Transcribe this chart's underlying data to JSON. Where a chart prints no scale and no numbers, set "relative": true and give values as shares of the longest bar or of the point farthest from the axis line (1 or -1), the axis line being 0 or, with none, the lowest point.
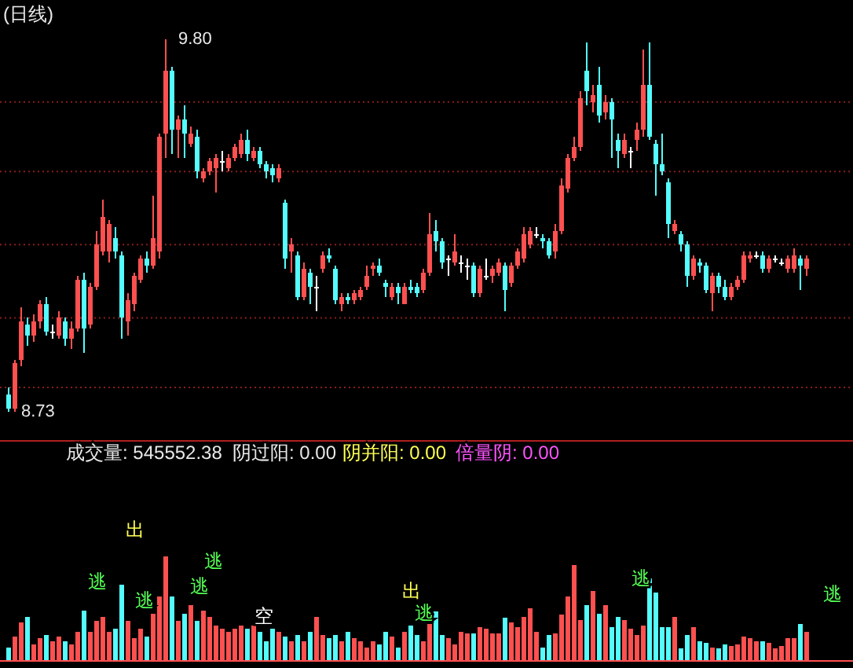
{
  "chart_data": [
    {
      "type": "candlestick",
      "title": "(日线)",
      "tick_labels": false,
      "grid": "y",
      "categories": [
        null,
        null,
        null,
        null,
        null,
        null,
        null,
        null,
        null,
        null,
        null,
        null,
        null,
        null,
        null,
        null,
        null,
        null,
        null,
        null,
        null,
        null,
        null,
        null,
        null,
        null,
        null,
        null,
        null,
        null,
        null,
        null,
        null,
        null,
        null,
        null,
        null,
        null,
        null,
        null,
        null,
        null,
        null,
        null,
        null,
        null,
        null,
        null,
        null,
        null,
        null,
        null,
        null,
        null,
        null,
        null,
        null,
        null,
        null,
        null,
        null,
        null,
        null,
        null,
        null,
        null,
        null,
        null,
        null,
        null,
        null,
        null,
        null,
        null,
        null,
        null,
        null,
        null,
        null,
        null,
        null,
        null,
        null,
        null,
        null,
        null,
        null,
        null,
        null,
        null,
        null,
        null,
        null,
        null,
        null,
        null,
        null,
        null,
        null,
        null,
        null,
        null,
        null,
        null,
        null,
        null,
        null,
        null,
        null,
        null,
        null,
        null,
        null,
        null,
        null,
        null,
        null,
        null,
        null,
        null,
        null,
        null,
        null,
        null,
        null,
        null,
        null,
        null
      ],
      "yticks": [
        {
          "value": 8.8,
          "label": null
        },
        {
          "value": 9.0,
          "label": null
        },
        {
          "value": 9.21,
          "label": null
        },
        {
          "value": 9.42,
          "label": null
        },
        {
          "value": 9.62,
          "label": null
        }
      ],
      "annotations": [
        "9.80",
        "8.73"
      ],
      "ohlc": [
        [
          8.78,
          8.8,
          8.73,
          8.74
        ],
        [
          8.74,
          8.88,
          8.73,
          8.87
        ],
        [
          8.88,
          9.03,
          8.86,
          8.99
        ],
        [
          8.98,
          9.0,
          8.92,
          8.95
        ],
        [
          8.95,
          9.01,
          8.93,
          8.99
        ],
        [
          8.99,
          9.05,
          8.97,
          9.04
        ],
        [
          9.04,
          9.06,
          8.95,
          8.96
        ],
        [
          8.96,
          8.98,
          8.94,
          8.96
        ],
        [
          8.95,
          9.02,
          8.94,
          9.0
        ],
        [
          8.99,
          9.0,
          8.92,
          8.94
        ],
        [
          8.94,
          8.99,
          8.91,
          8.97
        ],
        [
          8.97,
          9.12,
          8.96,
          9.11
        ],
        [
          9.11,
          9.13,
          8.9,
          8.97
        ],
        [
          8.98,
          9.1,
          8.97,
          9.09
        ],
        [
          9.09,
          9.25,
          9.08,
          9.21
        ],
        [
          9.19,
          9.34,
          9.18,
          9.29
        ],
        [
          9.19,
          9.28,
          9.16,
          9.27
        ],
        [
          9.23,
          9.26,
          9.17,
          9.19
        ],
        [
          9.18,
          9.19,
          8.94,
          9.0
        ],
        [
          8.99,
          9.07,
          8.95,
          9.05
        ],
        [
          9.04,
          9.13,
          9.02,
          9.12
        ],
        [
          9.11,
          9.18,
          9.1,
          9.17
        ],
        [
          9.17,
          9.19,
          9.13,
          9.15
        ],
        [
          9.15,
          9.35,
          9.14,
          9.23
        ],
        [
          9.19,
          9.53,
          9.17,
          9.52
        ],
        [
          9.53,
          9.8,
          9.46,
          9.71
        ],
        [
          9.71,
          9.72,
          9.47,
          9.54
        ],
        [
          9.54,
          9.58,
          9.46,
          9.57
        ],
        [
          9.57,
          9.61,
          9.46,
          9.53
        ],
        [
          9.5,
          9.55,
          9.49,
          9.53
        ],
        [
          9.52,
          9.54,
          9.4,
          9.42
        ],
        [
          9.4,
          9.43,
          9.39,
          9.42
        ],
        [
          9.42,
          9.46,
          9.41,
          9.45
        ],
        [
          9.43,
          9.47,
          9.36,
          9.46
        ],
        [
          9.45,
          9.48,
          9.42,
          9.45
        ],
        [
          9.43,
          9.47,
          9.42,
          9.46
        ],
        [
          9.46,
          9.5,
          9.45,
          9.49
        ],
        [
          9.47,
          9.53,
          9.46,
          9.51
        ],
        [
          9.51,
          9.54,
          9.45,
          9.47
        ],
        [
          9.46,
          9.49,
          9.45,
          9.48
        ],
        [
          9.48,
          9.49,
          9.43,
          9.44
        ],
        [
          9.44,
          9.45,
          9.4,
          9.42
        ],
        [
          9.43,
          9.44,
          9.39,
          9.41
        ],
        [
          9.4,
          9.44,
          9.39,
          9.43
        ],
        [
          9.33,
          9.34,
          9.14,
          9.17
        ],
        [
          9.19,
          9.23,
          9.13,
          9.21
        ],
        [
          9.18,
          9.19,
          9.05,
          9.06
        ],
        [
          9.06,
          9.16,
          9.05,
          9.14
        ],
        [
          9.13,
          9.14,
          9.04,
          9.09
        ],
        [
          9.09,
          9.12,
          9.02,
          9.09
        ],
        [
          9.14,
          9.19,
          9.13,
          9.18
        ],
        [
          9.18,
          9.2,
          9.16,
          9.17
        ],
        [
          9.14,
          9.15,
          9.04,
          9.05
        ],
        [
          9.04,
          9.07,
          9.02,
          9.06
        ],
        [
          9.06,
          9.07,
          9.04,
          9.05
        ],
        [
          9.05,
          9.08,
          9.04,
          9.07
        ],
        [
          9.06,
          9.09,
          9.05,
          9.08
        ],
        [
          9.09,
          9.15,
          9.08,
          9.12
        ],
        [
          9.14,
          9.16,
          9.12,
          9.15
        ],
        [
          9.15,
          9.17,
          9.12,
          9.13
        ],
        [
          9.1,
          9.11,
          9.06,
          9.09
        ],
        [
          9.06,
          9.1,
          9.05,
          9.09
        ],
        [
          9.09,
          9.1,
          9.04,
          9.07
        ],
        [
          9.04,
          9.1,
          9.04,
          9.09
        ],
        [
          9.09,
          9.11,
          9.07,
          9.08
        ],
        [
          9.09,
          9.1,
          9.06,
          9.07
        ],
        [
          9.08,
          9.14,
          9.07,
          9.13
        ],
        [
          9.13,
          9.3,
          9.12,
          9.24
        ],
        [
          9.25,
          9.28,
          9.19,
          9.22
        ],
        [
          9.22,
          9.23,
          9.14,
          9.16
        ],
        [
          9.17,
          9.18,
          9.12,
          9.17
        ],
        [
          9.16,
          9.24,
          9.15,
          9.19
        ],
        [
          9.16,
          9.18,
          9.13,
          9.16
        ],
        [
          9.15,
          9.17,
          9.11,
          9.15
        ],
        [
          9.15,
          9.16,
          9.06,
          9.07
        ],
        [
          9.07,
          9.15,
          9.06,
          9.14
        ],
        [
          9.12,
          9.17,
          9.11,
          9.12
        ],
        [
          9.12,
          9.15,
          9.1,
          9.14
        ],
        [
          9.13,
          9.17,
          9.12,
          9.16
        ],
        [
          9.15,
          9.16,
          9.02,
          9.08
        ],
        [
          9.1,
          9.16,
          9.09,
          9.15
        ],
        [
          9.15,
          9.2,
          9.14,
          9.19
        ],
        [
          9.17,
          9.26,
          9.16,
          9.24
        ],
        [
          9.21,
          9.26,
          9.2,
          9.25
        ],
        [
          9.24,
          9.26,
          9.23,
          9.24
        ],
        [
          9.23,
          9.24,
          9.2,
          9.22
        ],
        [
          9.22,
          9.23,
          9.17,
          9.18
        ],
        [
          9.19,
          9.27,
          9.17,
          9.25
        ],
        [
          9.25,
          9.4,
          9.24,
          9.38
        ],
        [
          9.37,
          9.47,
          9.36,
          9.46
        ],
        [
          9.46,
          9.52,
          9.45,
          9.49
        ],
        [
          9.49,
          9.65,
          9.48,
          9.63
        ],
        [
          9.71,
          9.79,
          9.61,
          9.65
        ],
        [
          9.62,
          9.67,
          9.59,
          9.64
        ],
        [
          9.67,
          9.72,
          9.56,
          9.58
        ],
        [
          9.59,
          9.64,
          9.57,
          9.62
        ],
        [
          9.62,
          9.63,
          9.46,
          9.57
        ],
        [
          9.51,
          9.53,
          9.43,
          9.48
        ],
        [
          9.47,
          9.53,
          9.46,
          9.51
        ],
        [
          9.48,
          9.49,
          9.43,
          9.48
        ],
        [
          9.51,
          9.56,
          9.48,
          9.54
        ],
        [
          9.54,
          9.77,
          9.52,
          9.67
        ],
        [
          9.67,
          9.79,
          9.51,
          9.52
        ],
        [
          9.5,
          9.51,
          9.35,
          9.44
        ],
        [
          9.44,
          9.53,
          9.41,
          9.42
        ],
        [
          9.39,
          9.4,
          9.23,
          9.27
        ],
        [
          9.25,
          9.28,
          9.24,
          9.27
        ],
        [
          9.24,
          9.25,
          9.19,
          9.21
        ],
        [
          9.21,
          9.22,
          9.09,
          9.12
        ],
        [
          9.12,
          9.18,
          9.11,
          9.17
        ],
        [
          9.16,
          9.17,
          9.13,
          9.15
        ],
        [
          9.15,
          9.16,
          9.07,
          9.08
        ],
        [
          9.07,
          9.13,
          9.02,
          9.12
        ],
        [
          9.12,
          9.13,
          9.07,
          9.09
        ],
        [
          9.09,
          9.11,
          9.05,
          9.06
        ],
        [
          9.06,
          9.1,
          9.05,
          9.09
        ],
        [
          9.09,
          9.12,
          9.08,
          9.11
        ],
        [
          9.11,
          9.19,
          9.1,
          9.18
        ],
        [
          9.17,
          9.19,
          9.16,
          9.18
        ],
        [
          9.18,
          9.19,
          9.17,
          9.18
        ],
        [
          9.18,
          9.19,
          9.13,
          9.14
        ],
        [
          9.14,
          9.18,
          9.13,
          9.17
        ],
        [
          9.17,
          9.18,
          9.16,
          9.17
        ],
        [
          9.16,
          9.17,
          9.15,
          9.16
        ],
        [
          9.14,
          9.18,
          9.13,
          9.17
        ],
        [
          9.14,
          9.2,
          9.13,
          9.18
        ],
        [
          9.17,
          9.18,
          9.08,
          9.15
        ],
        [
          9.14,
          9.18,
          9.12,
          9.17
        ]
      ],
      "colors": [
        "#54fcfc",
        "#ff5050",
        "#ff5050",
        "#54fcfc",
        "#ff5050",
        "#ff5050",
        "#54fcfc",
        "#ffffff",
        "#ff5050",
        "#54fcfc",
        "#ff5050",
        "#ff5050",
        "#54fcfc",
        "#ff5050",
        "#ff5050",
        "#ff5050",
        "#ff5050",
        "#54fcfc",
        "#54fcfc",
        "#ff5050",
        "#ff5050",
        "#ff5050",
        "#54fcfc",
        "#ff5050",
        "#ff5050",
        "#ff5050",
        "#54fcfc",
        "#ff5050",
        "#54fcfc",
        "#ff5050",
        "#54fcfc",
        "#ff5050",
        "#ff5050",
        "#ff5050",
        "#ffffff",
        "#ff5050",
        "#ff5050",
        "#ff5050",
        "#54fcfc",
        "#ff5050",
        "#54fcfc",
        "#54fcfc",
        "#54fcfc",
        "#ff5050",
        "#54fcfc",
        "#ff5050",
        "#54fcfc",
        "#ff5050",
        "#54fcfc",
        "#ffffff",
        "#ff5050",
        "#54fcfc",
        "#54fcfc",
        "#ff5050",
        "#54fcfc",
        "#ff5050",
        "#ff5050",
        "#ff5050",
        "#ff5050",
        "#54fcfc",
        "#54fcfc",
        "#ff5050",
        "#54fcfc",
        "#ff5050",
        "#54fcfc",
        "#54fcfc",
        "#ff5050",
        "#ff5050",
        "#54fcfc",
        "#54fcfc",
        "#ffffff",
        "#ff5050",
        "#ffffff",
        "#ffffff",
        "#54fcfc",
        "#ff5050",
        "#ffffff",
        "#ff5050",
        "#ff5050",
        "#54fcfc",
        "#ff5050",
        "#ff5050",
        "#ff5050",
        "#ff5050",
        "#ffffff",
        "#54fcfc",
        "#54fcfc",
        "#ff5050",
        "#ff5050",
        "#ff5050",
        "#ff5050",
        "#ff5050",
        "#54fcfc",
        "#ff5050",
        "#54fcfc",
        "#ff5050",
        "#54fcfc",
        "#54fcfc",
        "#ff5050",
        "#ffffff",
        "#ff5050",
        "#ff5050",
        "#54fcfc",
        "#54fcfc",
        "#54fcfc",
        "#54fcfc",
        "#ff5050",
        "#54fcfc",
        "#54fcfc",
        "#ff5050",
        "#54fcfc",
        "#54fcfc",
        "#ff5050",
        "#54fcfc",
        "#54fcfc",
        "#ff5050",
        "#ff5050",
        "#ff5050",
        "#ff5050",
        "#ffffff",
        "#54fcfc",
        "#ff5050",
        "#ffffff",
        "#ffffff",
        "#ff5050",
        "#ff5050",
        "#54fcfc",
        "#ff5050"
      ]
    },
    {
      "type": "bar",
      "relative": true,
      "categories": [
        null,
        null,
        null,
        null,
        null,
        null,
        null,
        null,
        null,
        null,
        null,
        null,
        null,
        null,
        null,
        null,
        null,
        null,
        null,
        null,
        null,
        null,
        null,
        null,
        null,
        null,
        null,
        null,
        null,
        null,
        null,
        null,
        null,
        null,
        null,
        null,
        null,
        null,
        null,
        null,
        null,
        null,
        null,
        null,
        null,
        null,
        null,
        null,
        null,
        null,
        null,
        null,
        null,
        null,
        null,
        null,
        null,
        null,
        null,
        null,
        null,
        null,
        null,
        null,
        null,
        null,
        null,
        null,
        null,
        null,
        null,
        null,
        null,
        null,
        null,
        null,
        null,
        null,
        null,
        null,
        null,
        null,
        null,
        null,
        null,
        null,
        null,
        null,
        null,
        null,
        null,
        null,
        null,
        null,
        null,
        null,
        null,
        null,
        null,
        null,
        null,
        null,
        null,
        null,
        null,
        null,
        null,
        null,
        null,
        null,
        null,
        null,
        null,
        null,
        null,
        null,
        null,
        null,
        null,
        null,
        null,
        null,
        null,
        null,
        null,
        null,
        null,
        null
      ],
      "values": [
        0.12,
        0.23,
        0.36,
        0.42,
        0.15,
        0.21,
        0.24,
        0.18,
        0.23,
        0.18,
        0.15,
        0.27,
        0.48,
        0.27,
        0.38,
        0.42,
        0.27,
        0.3,
        0.73,
        0.38,
        0.21,
        0.3,
        0.23,
        0.45,
        0.61,
        1,
        0.61,
        0.38,
        0.45,
        0.53,
        0.38,
        0.48,
        0.42,
        0.33,
        0.3,
        0.27,
        0.3,
        0.33,
        0.3,
        0.33,
        0.27,
        0.18,
        0.3,
        0.27,
        0.23,
        0.18,
        0.24,
        0.18,
        0.27,
        0.42,
        0.24,
        0.21,
        0.24,
        0.18,
        0.27,
        0.21,
        0.18,
        0.12,
        0.18,
        0.15,
        0.27,
        0.23,
        0.12,
        0.27,
        0.33,
        0.24,
        0.18,
        0.35,
        0.47,
        0.24,
        0.21,
        0.15,
        0.27,
        0.26,
        0.26,
        0.32,
        0.3,
        0.26,
        0.26,
        0.41,
        0.36,
        0.32,
        0.42,
        0.5,
        0.27,
        0.12,
        0.24,
        0.26,
        0.44,
        0.61,
        0.92,
        0.39,
        0.53,
        0.67,
        0.45,
        0.53,
        0.32,
        0.42,
        0.39,
        0.3,
        0.24,
        0.33,
        0.79,
        0.65,
        0.32,
        0.32,
        0.42,
        0.11,
        0.24,
        0.32,
        0.18,
        0.17,
        0.12,
        0.11,
        0.15,
        0.14,
        0.15,
        0.23,
        0.21,
        0.18,
        0.18,
        0.17,
        0.11,
        0.14,
        0.21,
        0.21,
        0.35,
        0.27
      ],
      "colors": [
        "#54fcfc",
        "#ff5050",
        "#ff5050",
        "#54fcfc",
        "#ff5050",
        "#ff5050",
        "#54fcfc",
        "#ff5050",
        "#ff5050",
        "#54fcfc",
        "#ff5050",
        "#ff5050",
        "#54fcfc",
        "#ff5050",
        "#ff5050",
        "#ff5050",
        "#ff5050",
        "#54fcfc",
        "#54fcfc",
        "#ff5050",
        "#ff5050",
        "#ff5050",
        "#54fcfc",
        "#ff5050",
        "#ff5050",
        "#ff5050",
        "#54fcfc",
        "#ff5050",
        "#54fcfc",
        "#ff5050",
        "#54fcfc",
        "#ff5050",
        "#ff5050",
        "#ff5050",
        "#ff5050",
        "#ff5050",
        "#ff5050",
        "#ff5050",
        "#54fcfc",
        "#ff5050",
        "#54fcfc",
        "#54fcfc",
        "#54fcfc",
        "#ff5050",
        "#54fcfc",
        "#ff5050",
        "#54fcfc",
        "#ff5050",
        "#54fcfc",
        "#ff5050",
        "#ff5050",
        "#54fcfc",
        "#54fcfc",
        "#ff5050",
        "#54fcfc",
        "#ff5050",
        "#ff5050",
        "#ff5050",
        "#ff5050",
        "#54fcfc",
        "#54fcfc",
        "#ff5050",
        "#54fcfc",
        "#ff5050",
        "#54fcfc",
        "#54fcfc",
        "#ff5050",
        "#ff5050",
        "#54fcfc",
        "#54fcfc",
        "#ff5050",
        "#ff5050",
        "#ff5050",
        "#ff5050",
        "#54fcfc",
        "#ff5050",
        "#ff5050",
        "#ff5050",
        "#ff5050",
        "#54fcfc",
        "#ff5050",
        "#ff5050",
        "#ff5050",
        "#ff5050",
        "#ff5050",
        "#54fcfc",
        "#54fcfc",
        "#ff5050",
        "#ff5050",
        "#ff5050",
        "#ff5050",
        "#ff5050",
        "#54fcfc",
        "#ff5050",
        "#54fcfc",
        "#ff5050",
        "#54fcfc",
        "#54fcfc",
        "#ff5050",
        "#ff5050",
        "#ff5050",
        "#ff5050",
        "#54fcfc",
        "#54fcfc",
        "#54fcfc",
        "#54fcfc",
        "#ff5050",
        "#54fcfc",
        "#54fcfc",
        "#ff5050",
        "#54fcfc",
        "#54fcfc",
        "#ff5050",
        "#54fcfc",
        "#54fcfc",
        "#ff5050",
        "#ff5050",
        "#ff5050",
        "#ff5050",
        "#ff5050",
        "#54fcfc",
        "#ff5050",
        "#ff5050",
        "#ff5050",
        "#ff5050",
        "#ff5050",
        "#54fcfc",
        "#ff5050"
      ],
      "annotations": [
        "成交量: 545552.38",
        "阴过阳: 0.00",
        "阴并阳: 0.00",
        "倍量阴: 0.00",
        "逃",
        "出",
        "逃",
        "逃",
        "逃",
        "空",
        "出",
        "逃",
        "逃",
        "逃"
      ]
    }
  ]
}
